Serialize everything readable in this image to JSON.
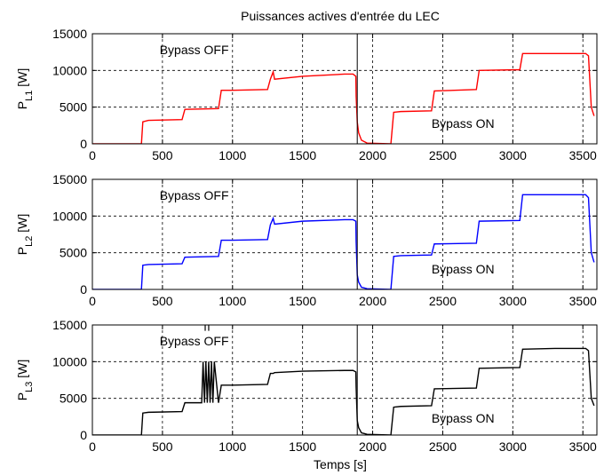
{
  "title": "Puissances actives d'entrée du LEC",
  "xlabel": "Temps  [s]",
  "chart_data": [
    {
      "type": "line",
      "ylabel": "P",
      "ylabel_sub": "L1",
      "ylabel_unit": "[W]",
      "color": "#ff0000",
      "xlim": [
        0,
        3600
      ],
      "ylim": [
        0,
        15000
      ],
      "xticks": [
        0,
        500,
        1000,
        1500,
        2000,
        2500,
        3000,
        3500
      ],
      "yticks": [
        0,
        5000,
        10000,
        15000
      ],
      "grid": true,
      "annotations": [
        "Bypass OFF",
        "Bypass ON"
      ],
      "series": [
        {
          "x": [
            0,
            350,
            360,
            400,
            640,
            660,
            900,
            920,
            1000,
            1250,
            1270,
            1290,
            1300,
            1500,
            1800,
            1860,
            1880,
            1882,
            1890,
            1900,
            1920,
            1940,
            1960,
            2130,
            2150,
            2200,
            2420,
            2440,
            2740,
            2760,
            3050,
            3070,
            3300,
            3520,
            3540,
            3560,
            3580
          ],
          "y": [
            0,
            0,
            3000,
            3200,
            3300,
            4700,
            4800,
            7300,
            7300,
            7400,
            8800,
            9800,
            8800,
            9200,
            9500,
            9500,
            9200,
            6500,
            3000,
            1500,
            500,
            300,
            100,
            0,
            4300,
            4400,
            4500,
            7200,
            7400,
            10000,
            10100,
            12300,
            12300,
            12300,
            12000,
            5000,
            3800
          ]
        }
      ]
    },
    {
      "type": "line",
      "ylabel": "P",
      "ylabel_sub": "L2",
      "ylabel_unit": "[W]",
      "color": "#0000ff",
      "xlim": [
        0,
        3600
      ],
      "ylim": [
        0,
        15000
      ],
      "xticks": [
        0,
        500,
        1000,
        1500,
        2000,
        2500,
        3000,
        3500
      ],
      "yticks": [
        0,
        5000,
        10000,
        15000
      ],
      "grid": true,
      "annotations": [
        "Bypass OFF",
        "Bypass ON"
      ],
      "series": [
        {
          "x": [
            0,
            350,
            360,
            400,
            640,
            660,
            900,
            920,
            1000,
            1250,
            1270,
            1290,
            1300,
            1500,
            1800,
            1860,
            1880,
            1882,
            1890,
            1900,
            1920,
            1940,
            1960,
            2130,
            2150,
            2200,
            2420,
            2440,
            2740,
            2760,
            3050,
            3070,
            3300,
            3520,
            3540,
            3560,
            3580
          ],
          "y": [
            0,
            0,
            3300,
            3400,
            3500,
            4400,
            4500,
            6700,
            6700,
            6800,
            8800,
            9700,
            8900,
            9300,
            9500,
            9500,
            9300,
            6500,
            2000,
            1000,
            300,
            200,
            100,
            0,
            4500,
            4600,
            4700,
            6200,
            6300,
            9300,
            9400,
            12900,
            12900,
            12900,
            12500,
            5000,
            3700
          ]
        }
      ]
    },
    {
      "type": "line",
      "ylabel": "P",
      "ylabel_sub": "L3",
      "ylabel_unit": "[W]",
      "color": "#000000",
      "xlim": [
        0,
        3600
      ],
      "ylim": [
        0,
        15000
      ],
      "xticks": [
        0,
        500,
        1000,
        1500,
        2000,
        2500,
        3000,
        3500
      ],
      "yticks": [
        0,
        5000,
        10000,
        15000
      ],
      "grid": true,
      "annotations": [
        "Bypass OFF",
        "Bypass ON"
      ],
      "series": [
        {
          "x": [
            0,
            350,
            360,
            400,
            640,
            660,
            780,
            790,
            800,
            810,
            820,
            830,
            840,
            850,
            860,
            870,
            900,
            920,
            1000,
            1250,
            1270,
            1290,
            1300,
            1500,
            1800,
            1860,
            1880,
            1882,
            1890,
            1900,
            1920,
            1940,
            1960,
            2130,
            2150,
            2200,
            2420,
            2440,
            2740,
            2760,
            3050,
            3070,
            3300,
            3520,
            3540,
            3560,
            3580
          ],
          "y": [
            0,
            0,
            3000,
            3100,
            3200,
            4400,
            4400,
            10000,
            4400,
            10000,
            4400,
            10000,
            4400,
            10000,
            4400,
            10000,
            4400,
            6800,
            6800,
            6900,
            8400,
            8400,
            8500,
            8700,
            8800,
            8800,
            8600,
            6500,
            2000,
            1000,
            300,
            200,
            100,
            0,
            3800,
            3900,
            4000,
            6300,
            6400,
            9100,
            9200,
            11700,
            11800,
            11800,
            11500,
            5000,
            4000
          ]
        }
      ],
      "spikes_above": [
        {
          "x": 805,
          "y_from": 14200,
          "y_to": 15000
        },
        {
          "x": 830,
          "y_from": 14200,
          "y_to": 15000
        }
      ]
    }
  ]
}
